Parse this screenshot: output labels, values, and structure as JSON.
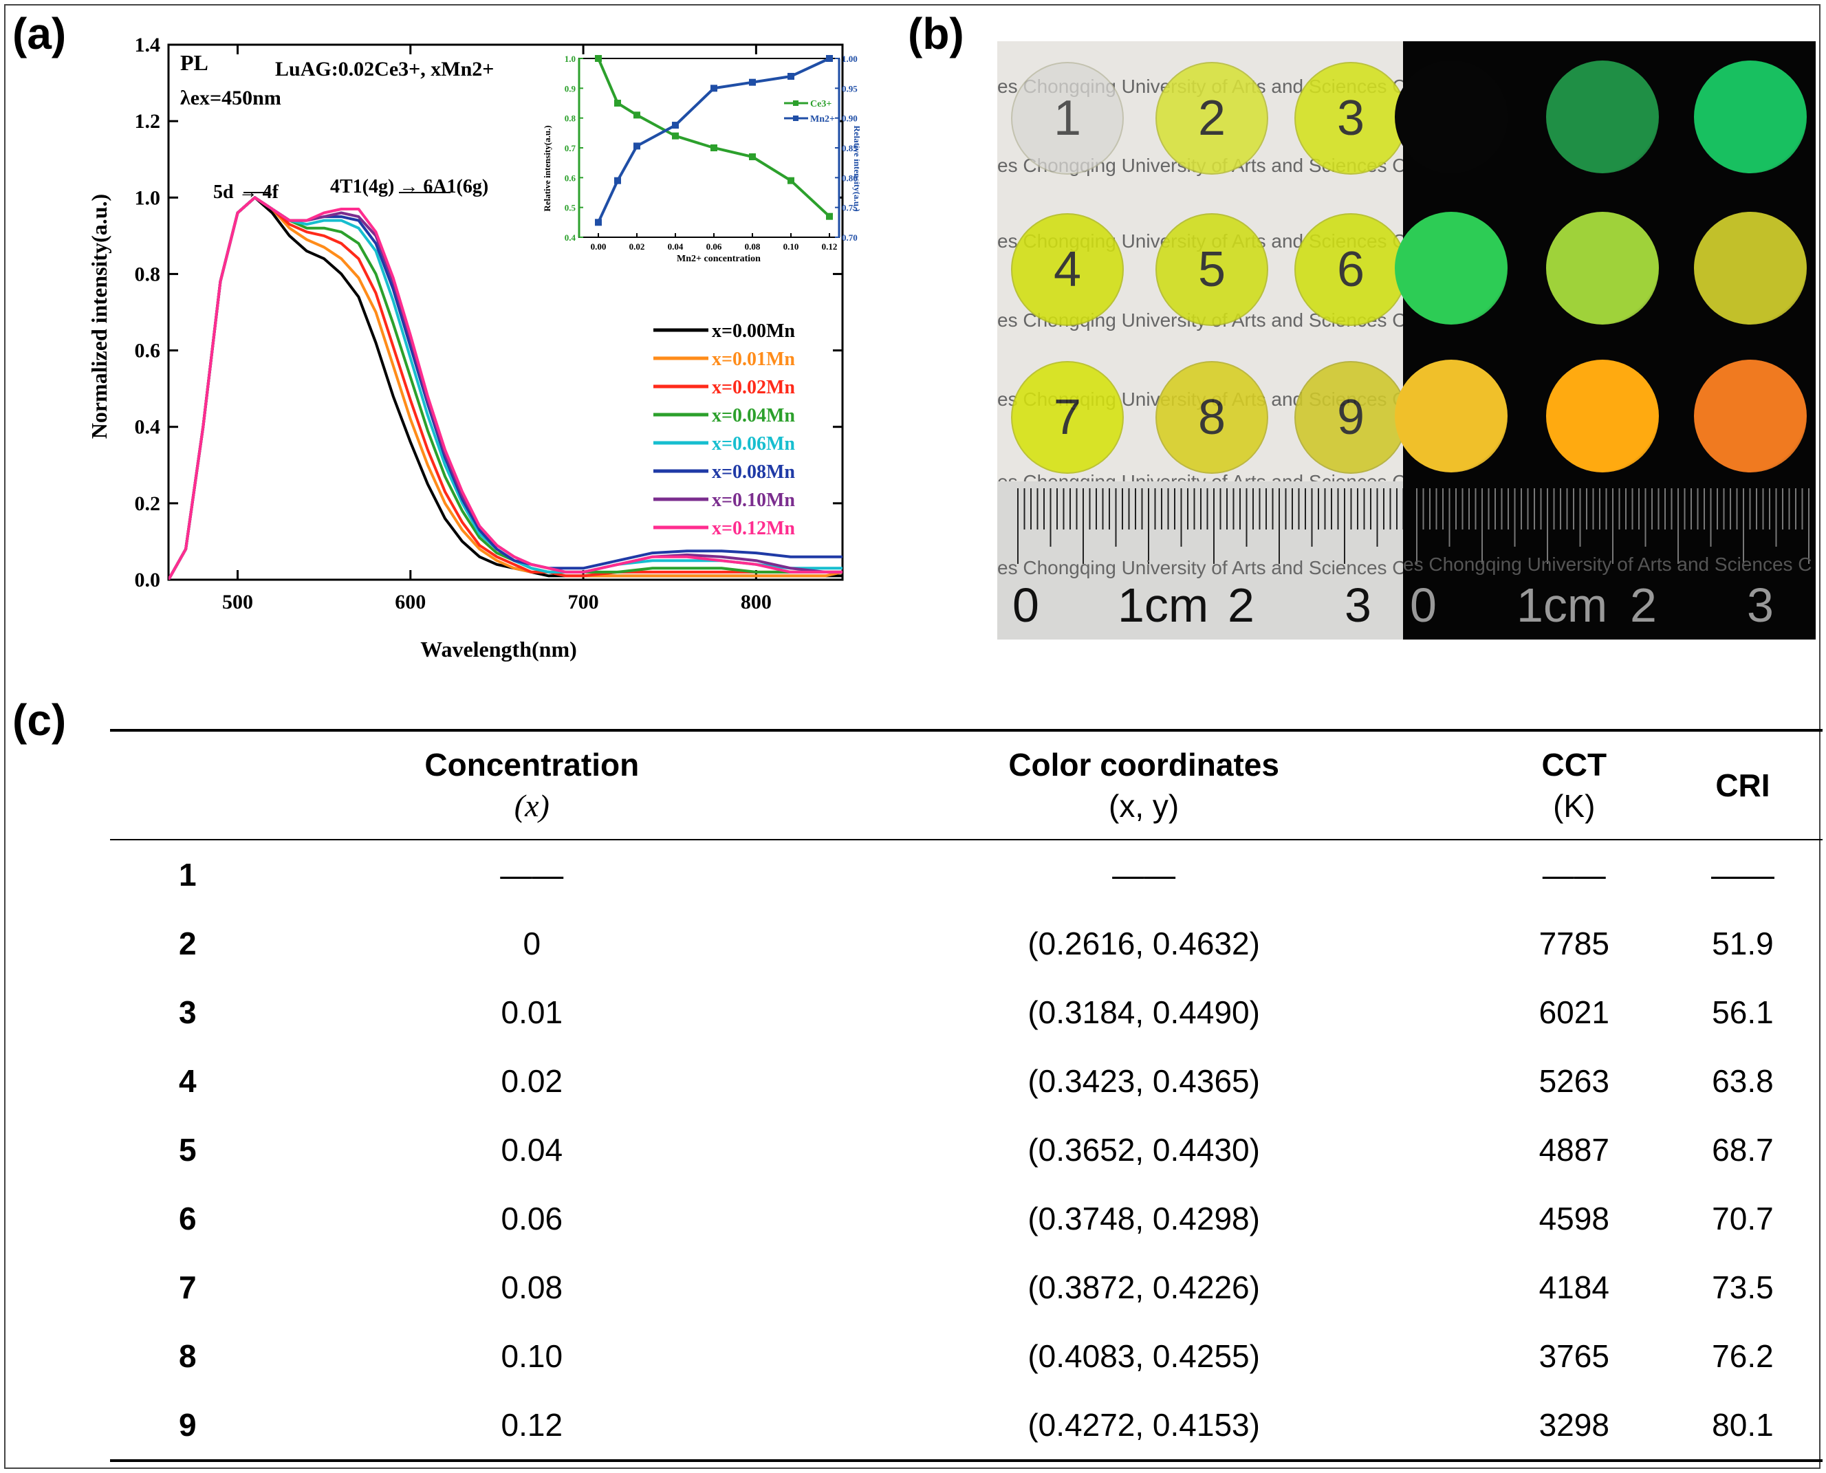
{
  "panels": {
    "a": "(a)",
    "b": "(b)",
    "c": "(c)"
  },
  "chart_data": [
    {
      "type": "line",
      "title": "",
      "xlabel": "Wavelength(nm)",
      "ylabel": "Normalized intensity(a.u.)",
      "xlim": [
        460,
        850
      ],
      "ylim": [
        0.0,
        1.4
      ],
      "xticks": [
        "500",
        "600",
        "700",
        "800"
      ],
      "yticks": [
        "0.0",
        "0.2",
        "0.4",
        "0.6",
        "0.8",
        "1.0",
        "1.2",
        "1.4"
      ],
      "annotations": {
        "pl": "PL",
        "lambda_ex": "λex=450nm",
        "composition": "LuAG:0.02Ce3+, xMn2+",
        "trans_ce": "5d → 4f",
        "trans_mn": "4T1(4g) → 6A1(6g)"
      },
      "x": [
        460,
        470,
        480,
        490,
        500,
        510,
        520,
        530,
        540,
        550,
        560,
        570,
        580,
        590,
        600,
        610,
        620,
        630,
        640,
        650,
        660,
        670,
        680,
        690,
        700,
        720,
        740,
        760,
        780,
        800,
        820,
        840,
        850
      ],
      "series": [
        {
          "name": "x=0.00Mn",
          "color": "#000000",
          "values": [
            0.0,
            0.08,
            0.4,
            0.78,
            0.96,
            1.0,
            0.96,
            0.9,
            0.86,
            0.84,
            0.8,
            0.74,
            0.62,
            0.48,
            0.36,
            0.25,
            0.16,
            0.1,
            0.06,
            0.04,
            0.03,
            0.02,
            0.01,
            0.01,
            0.01,
            0.01,
            0.01,
            0.01,
            0.01,
            0.01,
            0.01,
            0.01,
            0.01
          ]
        },
        {
          "name": "x=0.01Mn",
          "color": "#ff8c1a",
          "values": [
            0.0,
            0.08,
            0.4,
            0.78,
            0.96,
            1.0,
            0.97,
            0.92,
            0.89,
            0.87,
            0.84,
            0.79,
            0.7,
            0.56,
            0.42,
            0.3,
            0.2,
            0.13,
            0.08,
            0.05,
            0.03,
            0.02,
            0.02,
            0.01,
            0.01,
            0.01,
            0.01,
            0.01,
            0.01,
            0.01,
            0.01,
            0.01,
            0.02
          ]
        },
        {
          "name": "x=0.02Mn",
          "color": "#ff2a1a",
          "values": [
            0.0,
            0.08,
            0.4,
            0.78,
            0.96,
            1.0,
            0.97,
            0.93,
            0.91,
            0.9,
            0.88,
            0.84,
            0.75,
            0.61,
            0.47,
            0.34,
            0.23,
            0.15,
            0.09,
            0.06,
            0.04,
            0.02,
            0.02,
            0.01,
            0.01,
            0.02,
            0.02,
            0.02,
            0.02,
            0.02,
            0.02,
            0.02,
            0.02
          ]
        },
        {
          "name": "x=0.04Mn",
          "color": "#2ca02c",
          "values": [
            0.0,
            0.08,
            0.4,
            0.78,
            0.96,
            1.0,
            0.97,
            0.94,
            0.92,
            0.92,
            0.91,
            0.88,
            0.8,
            0.67,
            0.53,
            0.39,
            0.27,
            0.18,
            0.11,
            0.07,
            0.05,
            0.03,
            0.02,
            0.02,
            0.02,
            0.02,
            0.03,
            0.03,
            0.03,
            0.02,
            0.02,
            0.02,
            0.02
          ]
        },
        {
          "name": "x=0.06Mn",
          "color": "#17becf",
          "values": [
            0.0,
            0.08,
            0.4,
            0.78,
            0.96,
            1.0,
            0.97,
            0.94,
            0.93,
            0.94,
            0.94,
            0.92,
            0.86,
            0.73,
            0.58,
            0.43,
            0.3,
            0.2,
            0.12,
            0.08,
            0.05,
            0.03,
            0.02,
            0.02,
            0.02,
            0.04,
            0.05,
            0.05,
            0.05,
            0.04,
            0.03,
            0.03,
            0.03
          ]
        },
        {
          "name": "x=0.08Mn",
          "color": "#1f3aa6",
          "values": [
            0.0,
            0.08,
            0.4,
            0.78,
            0.96,
            1.0,
            0.97,
            0.94,
            0.94,
            0.95,
            0.95,
            0.94,
            0.88,
            0.76,
            0.61,
            0.46,
            0.32,
            0.21,
            0.13,
            0.08,
            0.05,
            0.04,
            0.03,
            0.03,
            0.03,
            0.05,
            0.07,
            0.075,
            0.075,
            0.07,
            0.06,
            0.06,
            0.06
          ]
        },
        {
          "name": "x=0.10Mn",
          "color": "#7b2d8e",
          "values": [
            0.0,
            0.08,
            0.4,
            0.78,
            0.96,
            1.0,
            0.97,
            0.94,
            0.94,
            0.95,
            0.96,
            0.95,
            0.9,
            0.78,
            0.63,
            0.47,
            0.33,
            0.22,
            0.14,
            0.09,
            0.06,
            0.04,
            0.03,
            0.02,
            0.02,
            0.04,
            0.06,
            0.065,
            0.06,
            0.05,
            0.03,
            0.02,
            0.02
          ]
        },
        {
          "name": "x=0.12Mn",
          "color": "#ff2d8f",
          "values": [
            0.0,
            0.08,
            0.4,
            0.78,
            0.96,
            1.0,
            0.97,
            0.94,
            0.94,
            0.96,
            0.97,
            0.97,
            0.91,
            0.79,
            0.64,
            0.48,
            0.34,
            0.23,
            0.14,
            0.09,
            0.06,
            0.04,
            0.03,
            0.02,
            0.02,
            0.04,
            0.06,
            0.06,
            0.05,
            0.04,
            0.02,
            0.02,
            0.02
          ]
        }
      ]
    },
    {
      "type": "line",
      "title": "",
      "xlabel": "Mn2+ concentration",
      "ylabel": "Relative intensity(a.u.)",
      "ylabel_right": "Relative intensity(a.u.)",
      "xlim": [
        -0.01,
        0.125
      ],
      "ylim": [
        0.4,
        1.0
      ],
      "ylim_right": [
        0.7,
        1.0
      ],
      "xticks": [
        "0.00",
        "0.02",
        "0.04",
        "0.06",
        "0.08",
        "0.10",
        "0.12"
      ],
      "yticks": [
        "0.4",
        "0.5",
        "0.6",
        "0.7",
        "0.8",
        "0.9",
        "1.0"
      ],
      "yticks_right": [
        "0.70",
        "0.75",
        "0.80",
        "0.85",
        "0.90",
        "0.95",
        "1.00"
      ],
      "x": [
        0.0,
        0.01,
        0.02,
        0.04,
        0.06,
        0.08,
        0.1,
        0.12
      ],
      "series": [
        {
          "name": "Ce3+",
          "axis": "left",
          "color": "#2ca02c",
          "values": [
            1.0,
            0.85,
            0.81,
            0.74,
            0.7,
            0.67,
            0.59,
            0.47
          ]
        },
        {
          "name": "Mn2+",
          "axis": "right",
          "color": "#1f4ea6",
          "values": [
            0.725,
            0.795,
            0.853,
            0.888,
            0.95,
            0.96,
            0.97,
            1.0
          ]
        }
      ]
    }
  ],
  "photo": {
    "watermark": "es Chongqing University of Arts and Sciences C",
    "discs": [
      "1",
      "2",
      "3",
      "4",
      "5",
      "6",
      "7",
      "8",
      "9"
    ],
    "ruler_labels": [
      "0",
      "1cm",
      "2",
      "3"
    ]
  },
  "table": {
    "headers": [
      {
        "main": "",
        "sub": ""
      },
      {
        "main": "Concentration",
        "sub": "(x)"
      },
      {
        "main": "Color coordinates",
        "sub": "(x, y)"
      },
      {
        "main": "CCT",
        "sub": "(K)"
      },
      {
        "main": "CRI",
        "sub": ""
      }
    ],
    "rows": [
      [
        "1",
        "——",
        "——",
        "——",
        "——"
      ],
      [
        "2",
        "0",
        "(0.2616, 0.4632)",
        "7785",
        "51.9"
      ],
      [
        "3",
        "0.01",
        "(0.3184, 0.4490)",
        "6021",
        "56.1"
      ],
      [
        "4",
        "0.02",
        "(0.3423, 0.4365)",
        "5263",
        "63.8"
      ],
      [
        "5",
        "0.04",
        "(0.3652, 0.4430)",
        "4887",
        "68.7"
      ],
      [
        "6",
        "0.06",
        "(0.3748, 0.4298)",
        "4598",
        "70.7"
      ],
      [
        "7",
        "0.08",
        "(0.3872, 0.4226)",
        "4184",
        "73.5"
      ],
      [
        "8",
        "0.10",
        "(0.4083, 0.4255)",
        "3765",
        "76.2"
      ],
      [
        "9",
        "0.12",
        "(0.4272, 0.4153)",
        "3298",
        "80.1"
      ]
    ]
  },
  "colors": {
    "disc_daylight": [
      "#d9d8d4",
      "#d8e23a",
      "#d4e21e",
      "#d2e010",
      "#d0de18",
      "#d0e012",
      "#d6e30e",
      "#d8cf22",
      "#cfc82a"
    ],
    "disc_glow": [
      "#060606",
      "#1f8f45",
      "#18c060",
      "#2dcc55",
      "#9fd23a",
      "#c2c02a",
      "#f0c02a",
      "#ffaa10",
      "#f07a20"
    ]
  }
}
